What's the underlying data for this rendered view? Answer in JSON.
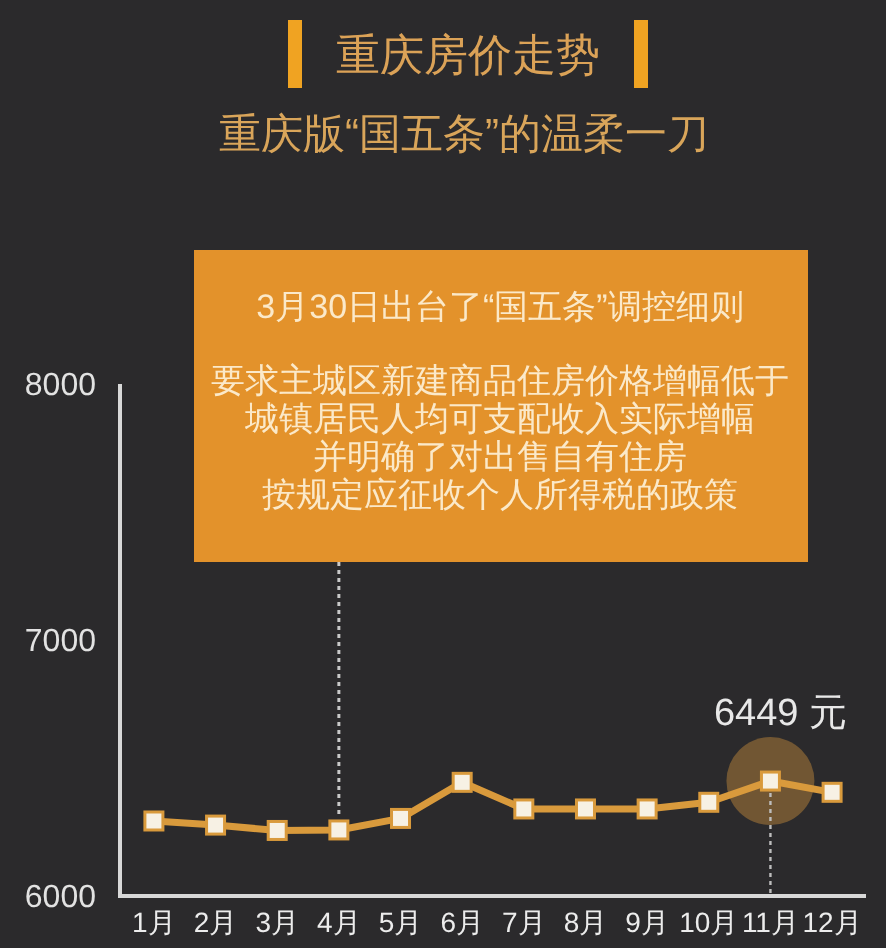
{
  "chart_data": {
    "type": "line",
    "title": "重庆房价走势",
    "subtitle": "重庆版“国五条”的温柔一刀",
    "categories": [
      "1月",
      "2月",
      "3月",
      "4月",
      "5月",
      "6月",
      "7月",
      "8月",
      "9月",
      "10月",
      "11月",
      "12月"
    ],
    "series": [
      {
        "color": "#d99a3c",
        "values": [
          6293,
          6277,
          6256,
          6258,
          6303,
          6444,
          6340,
          6340,
          6340,
          6366,
          6449,
          6405
        ]
      }
    ],
    "ylim": [
      6000,
      8000
    ],
    "yticks": [
      6000,
      7000,
      8000
    ],
    "marker": "square",
    "line_style": "solid",
    "ref_lines": [
      {
        "axis": "x",
        "value": "4月",
        "label": null,
        "color": "#c9c9c9",
        "line_style": "dotted"
      }
    ],
    "annotations": [
      "3月30日出台了“国五条”调控细则",
      "要求主城区新建商品住房价格增幅低于",
      "城镇居民人均可支配收入实际增幅",
      "并明确了对出售自有住房",
      "按规定应征收个人所得税的政策",
      {
        "text": "6449 元",
        "x": "11月",
        "y": 6449
      }
    ]
  }
}
